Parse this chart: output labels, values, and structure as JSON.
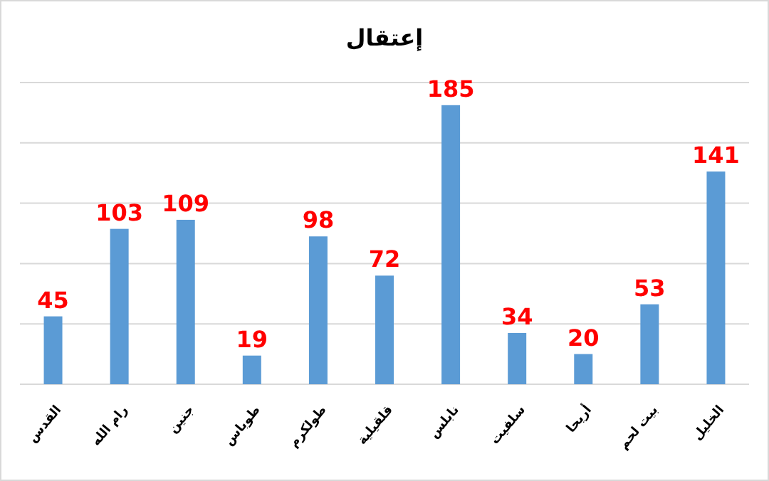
{
  "chart_data": {
    "type": "bar",
    "title": "إعتقال",
    "categories": [
      "القدس",
      "رام الله",
      "جنين",
      "طوباس",
      "طولكرم",
      "قلقيلية",
      "نابلس",
      "سلفيت",
      "أريحا",
      "بيت لحم",
      "الخليل"
    ],
    "values": [
      45,
      103,
      109,
      19,
      98,
      72,
      185,
      34,
      20,
      53,
      141
    ],
    "color": "#5b9bd5",
    "ylim": [
      0,
      200
    ],
    "yticks": [
      {
        "value": 0,
        "label": null
      },
      {
        "value": 40,
        "label": null
      },
      {
        "value": 80,
        "label": null
      },
      {
        "value": 120,
        "label": null
      },
      {
        "value": 160,
        "label": null
      },
      {
        "value": 200,
        "label": null
      }
    ],
    "grid": "y",
    "data_labels": true,
    "tick_labels": "x"
  }
}
